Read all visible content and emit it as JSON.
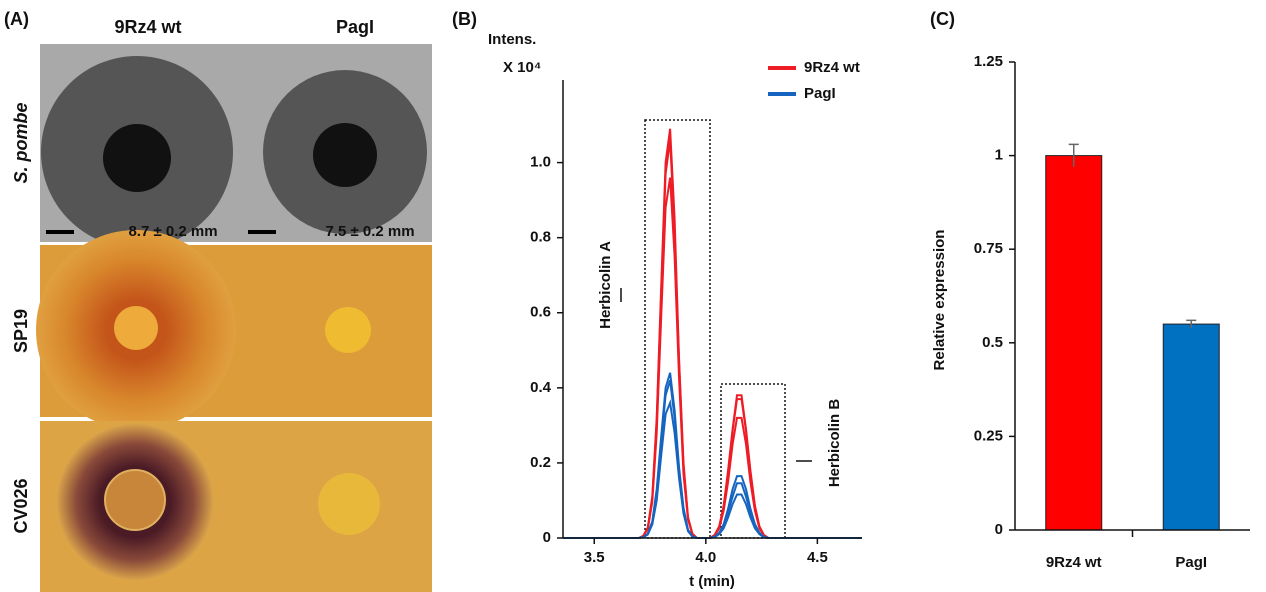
{
  "panel_a": {
    "label": "(A)",
    "columns": [
      "9Rz4 wt",
      "PagI"
    ],
    "rows": [
      "S. pombe",
      "SP19",
      "CV026"
    ],
    "measurements": [
      "8.7 ± 0.2 mm",
      "7.5 ± 0.2 mm"
    ]
  },
  "chart_data": [
    {
      "type": "line",
      "panel_label": "(B)",
      "y_label": "Intens.",
      "y_multiplier": "X 10⁴",
      "x_label": "t (min)",
      "annotations": [
        "Herbicolin A",
        "Herbicolin B"
      ],
      "xlim": [
        3.36,
        4.7
      ],
      "xticks": [
        3.5,
        {
          "value": 4,
          "label": "4.0"
        },
        4.5
      ],
      "ylim": [
        0,
        1.22
      ],
      "yticks": [
        0,
        0.2,
        0.4,
        0.6,
        0.8,
        {
          "value": 1,
          "label": "1.0"
        }
      ],
      "x": [
        3.36,
        3.5,
        3.7,
        3.72,
        3.74,
        3.76,
        3.78,
        3.8,
        3.82,
        3.84,
        3.86,
        3.88,
        3.9,
        3.92,
        3.94,
        3.96,
        3.98,
        4.0,
        4.02,
        4.04,
        4.06,
        4.08,
        4.1,
        4.12,
        4.14,
        4.16,
        4.18,
        4.2,
        4.22,
        4.24,
        4.26,
        4.28,
        4.3,
        4.35,
        4.4,
        4.5,
        4.6,
        4.7
      ],
      "series": [
        {
          "name": "9Rz4 wt",
          "color": "#ee1c25",
          "traces": [
            [
              0,
              0,
              0,
              0.006,
              0.028,
              0.11,
              0.32,
              0.67,
              1.0,
              1.09,
              0.85,
              0.48,
              0.2,
              0.055,
              0.011,
              0,
              0,
              0,
              0,
              0.008,
              0.031,
              0.086,
              0.18,
              0.29,
              0.38,
              0.38,
              0.29,
              0.18,
              0.086,
              0.031,
              0.008,
              0,
              0,
              0,
              0,
              0,
              0,
              0
            ],
            [
              0,
              0,
              0,
              0.005,
              0.027,
              0.107,
              0.31,
              0.65,
              0.97,
              1.06,
              0.82,
              0.47,
              0.19,
              0.054,
              0.011,
              0,
              0,
              0,
              0,
              0.008,
              0.03,
              0.084,
              0.175,
              0.285,
              0.37,
              0.37,
              0.285,
              0.175,
              0.084,
              0.03,
              0.008,
              0,
              0,
              0,
              0,
              0,
              0,
              0
            ],
            [
              0,
              0,
              0,
              0.005,
              0.024,
              0.097,
              0.28,
              0.59,
              0.88,
              0.96,
              0.75,
              0.43,
              0.17,
              0.049,
              0.01,
              0,
              0,
              0,
              0,
              0.007,
              0.026,
              0.073,
              0.15,
              0.25,
              0.32,
              0.32,
              0.25,
              0.15,
              0.073,
              0.026,
              0.007,
              0,
              0,
              0,
              0,
              0,
              0,
              0
            ]
          ]
        },
        {
          "name": "PagI",
          "color": "#1565c0",
          "traces": [
            [
              0,
              0,
              0,
              0.002,
              0.011,
              0.044,
              0.13,
              0.27,
              0.4,
              0.44,
              0.34,
              0.19,
              0.08,
              0.022,
              0.004,
              0,
              0,
              0,
              0,
              0.003,
              0.014,
              0.037,
              0.078,
              0.13,
              0.165,
              0.165,
              0.13,
              0.078,
              0.037,
              0.014,
              0.003,
              0,
              0,
              0,
              0,
              0,
              0,
              0
            ],
            [
              0,
              0,
              0,
              0.002,
              0.011,
              0.042,
              0.12,
              0.26,
              0.38,
              0.42,
              0.32,
              0.18,
              0.076,
              0.021,
              0.004,
              0,
              0,
              0,
              0,
              0.003,
              0.012,
              0.033,
              0.069,
              0.11,
              0.146,
              0.146,
              0.11,
              0.069,
              0.033,
              0.012,
              0.003,
              0,
              0,
              0,
              0,
              0,
              0,
              0
            ],
            [
              0,
              0,
              0,
              0.002,
              0.009,
              0.036,
              0.1,
              0.22,
              0.33,
              0.36,
              0.28,
              0.16,
              0.065,
              0.018,
              0.004,
              0,
              0,
              0,
              0,
              0.002,
              0.01,
              0.026,
              0.055,
              0.09,
              0.116,
              0.116,
              0.09,
              0.055,
              0.026,
              0.01,
              0.002,
              0,
              0,
              0,
              0,
              0,
              0,
              0
            ]
          ]
        }
      ]
    },
    {
      "type": "bar",
      "panel_label": "(C)",
      "y_label": "Relative expression",
      "categories": [
        "9Rz4 wt",
        "PagI"
      ],
      "values": [
        1,
        0.55
      ],
      "errors": [
        0.03,
        0.01
      ],
      "colors": [
        "#ff0000",
        "#0070c0"
      ],
      "ylim": [
        0,
        1.25
      ],
      "yticks": [
        0,
        0.25,
        0.5,
        0.75,
        1,
        1.25
      ]
    }
  ]
}
